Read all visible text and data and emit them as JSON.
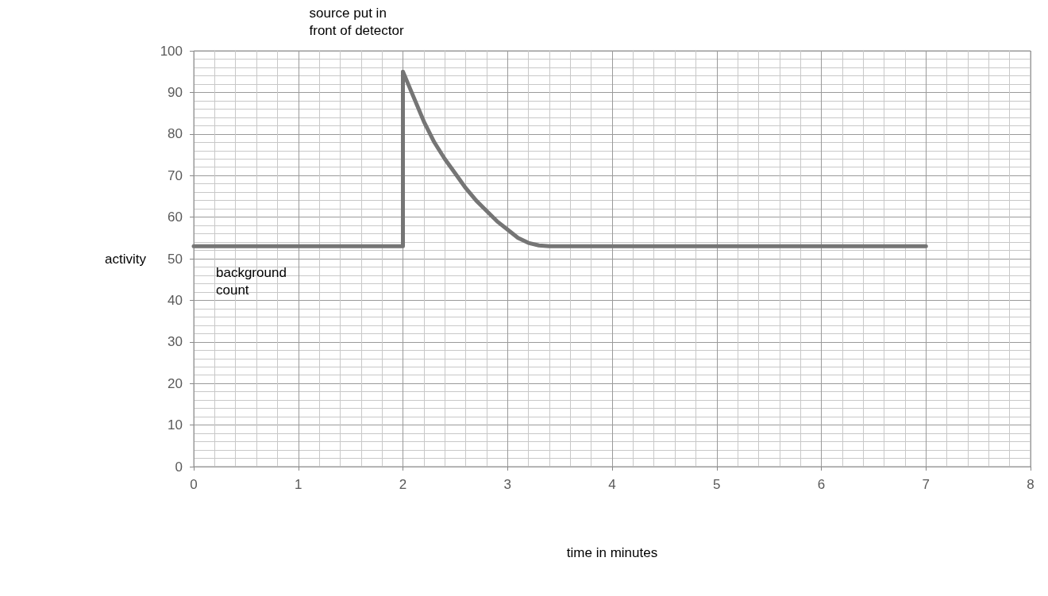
{
  "chart_data": {
    "type": "line",
    "xlabel": "time in minutes",
    "ylabel": "activity",
    "x": [
      0,
      2,
      2,
      2.1,
      2.2,
      2.3,
      2.4,
      2.5,
      2.6,
      2.7,
      2.8,
      2.9,
      3.0,
      3.1,
      3.2,
      3.3,
      3.4,
      7
    ],
    "values": [
      53,
      53,
      95,
      89,
      83,
      78,
      74,
      70.5,
      67,
      64,
      61.5,
      59,
      57,
      55,
      53.8,
      53.2,
      53,
      53
    ],
    "color": "#757575",
    "marker": "none",
    "line_style": "solid",
    "grid": true,
    "xlim": [
      0,
      8
    ],
    "xticks": [
      0,
      1,
      2,
      3,
      4,
      5,
      6,
      7,
      8
    ],
    "ylim": [
      0,
      100
    ],
    "yticks": [
      0,
      10,
      20,
      30,
      40,
      50,
      60,
      70,
      80,
      90,
      100
    ],
    "annotations": [
      {
        "text": "source put in\nfront of detector",
        "x": 2,
        "y": 95
      },
      {
        "text": "background\ncount",
        "x": 0,
        "y": 53
      }
    ]
  }
}
